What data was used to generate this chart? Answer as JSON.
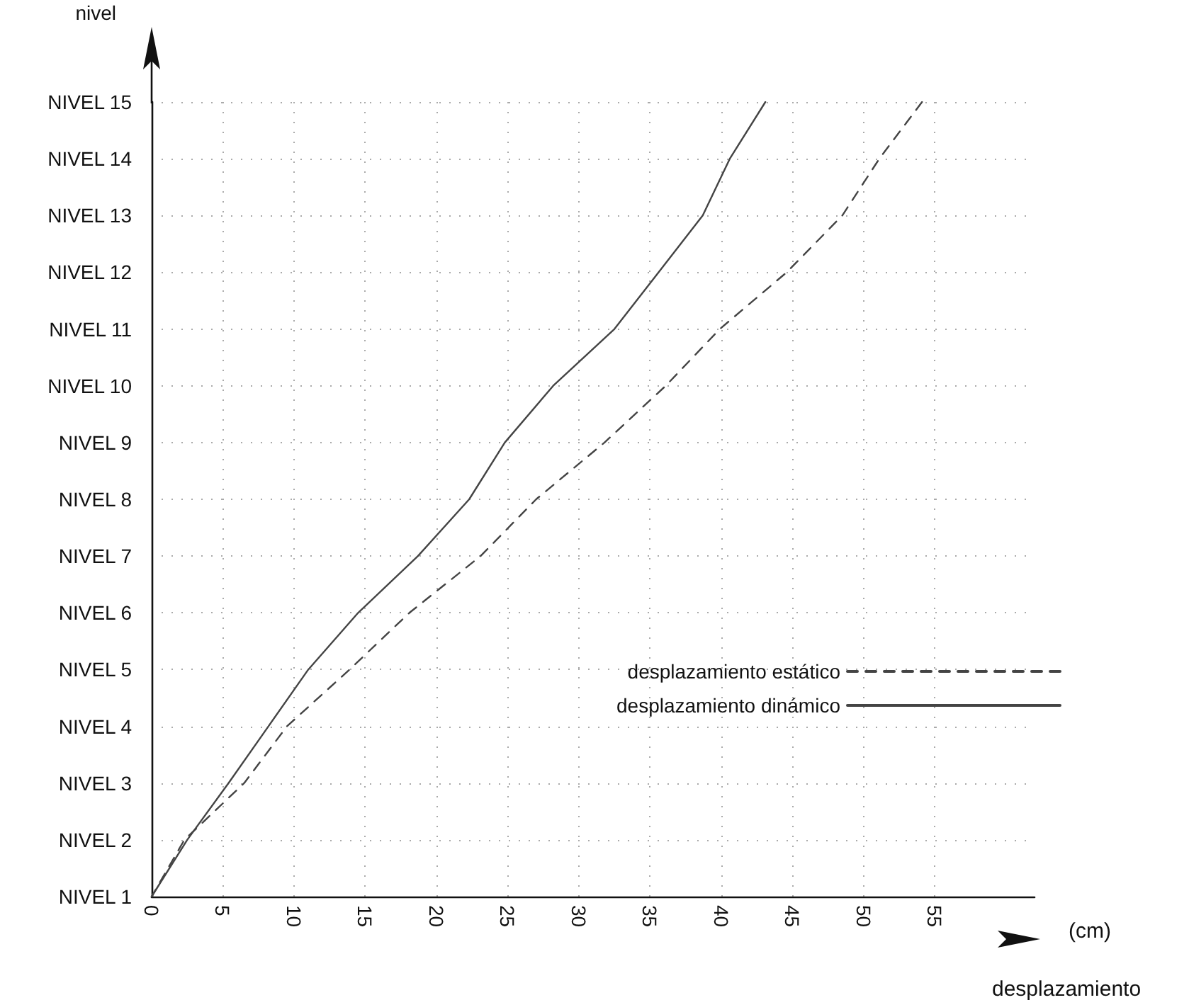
{
  "chart_data": {
    "type": "line",
    "orientation": "horizontal",
    "ylabel": "nivel",
    "xlabel": "desplazamiento",
    "annotations": [
      "(cm)"
    ],
    "xlim": [
      0,
      62
    ],
    "xticks": [
      0,
      5,
      10,
      15,
      20,
      25,
      30,
      35,
      40,
      45,
      50,
      55
    ],
    "categories": [
      "NIVEL 15",
      "NIVEL 14",
      "NIVEL 13",
      "NIVEL 12",
      "NIVEL 11",
      "NIVEL 10",
      "NIVEL 9",
      "NIVEL 8",
      "NIVEL 7",
      "NIVEL 6",
      "NIVEL 5",
      "NIVEL 4",
      "NIVEL 3",
      "NIVEL 2",
      "NIVEL 1"
    ],
    "grid": true,
    "legend": "right",
    "marker": "none",
    "series": [
      {
        "name": "desplazamiento estático",
        "color": "#444444",
        "line_style": "dashed",
        "values": [
          54.1,
          51.1,
          48.5,
          44.6,
          39.9,
          36.1,
          31.8,
          27.0,
          23.1,
          18.1,
          13.9,
          9.5,
          6.5,
          2.3,
          0
        ]
      },
      {
        "name": "desplazamiento dinámico",
        "color": "#444444",
        "line_style": "solid",
        "values": [
          43.1,
          40.6,
          38.7,
          35.6,
          32.5,
          28.2,
          24.8,
          22.3,
          18.7,
          14.5,
          11.0,
          8.2,
          5.4,
          2.5,
          0
        ]
      }
    ]
  }
}
